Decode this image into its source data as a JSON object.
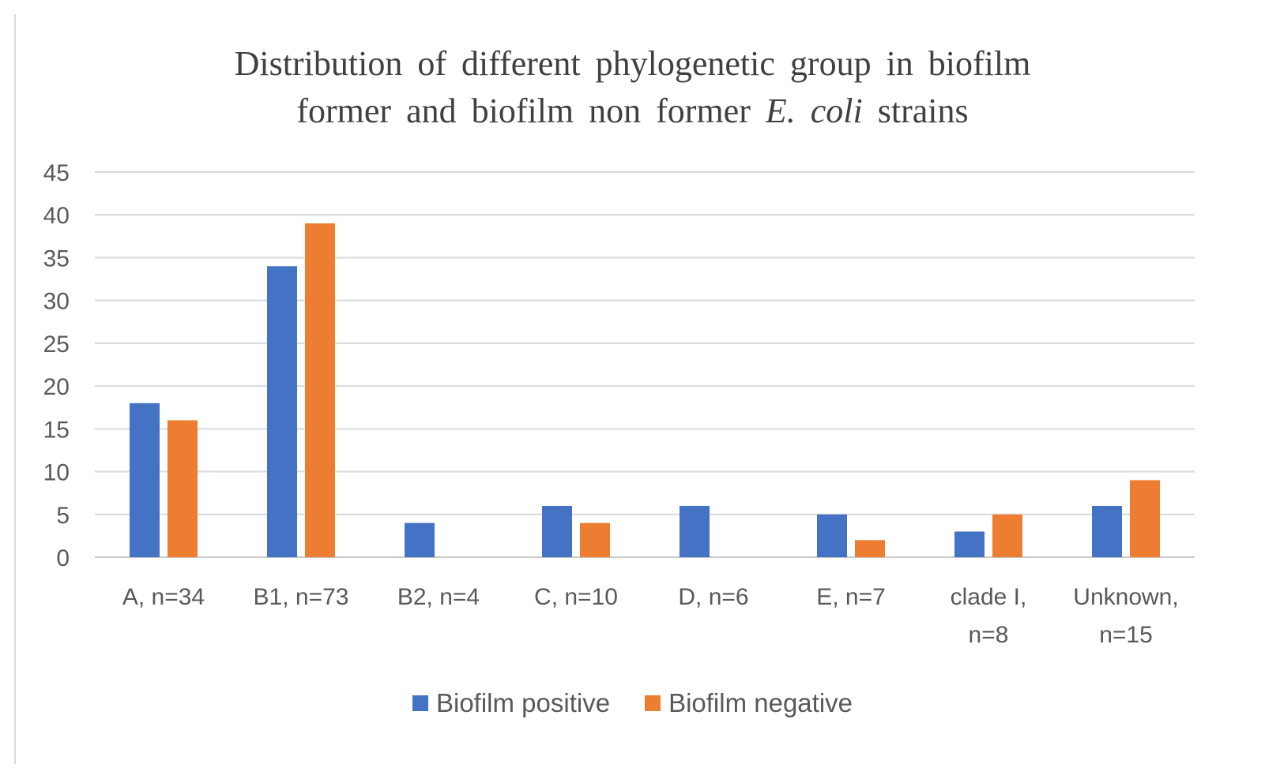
{
  "chart_data": {
    "type": "bar",
    "title_line_1": "Distribution of different phylogenetic group in biofilm",
    "title_line_2_prefix": "former and biofilm non former",
    "title_line_2_italic": "E. coli",
    "title_line_2_suffix": "strains",
    "categories": [
      [
        "A, n=34"
      ],
      [
        "B1, n=73"
      ],
      [
        "B2, n=4"
      ],
      [
        "C, n=10"
      ],
      [
        "D, n=6"
      ],
      [
        "E, n=7"
      ],
      [
        "clade I,",
        "n=8"
      ],
      [
        "Unknown,",
        "n=15"
      ]
    ],
    "series": [
      {
        "name": "Biofilm positive",
        "color": "#4472c4",
        "values": [
          18,
          34,
          4,
          6,
          6,
          5,
          3,
          6
        ]
      },
      {
        "name": "Biofilm negative",
        "color": "#ed7d31",
        "values": [
          16,
          39,
          0,
          4,
          0,
          2,
          5,
          9
        ]
      }
    ],
    "ylim": [
      0,
      45
    ],
    "yticks": [
      0,
      5,
      10,
      15,
      20,
      25,
      30,
      35,
      40,
      45
    ],
    "grid": true,
    "legend_position": "bottom"
  }
}
